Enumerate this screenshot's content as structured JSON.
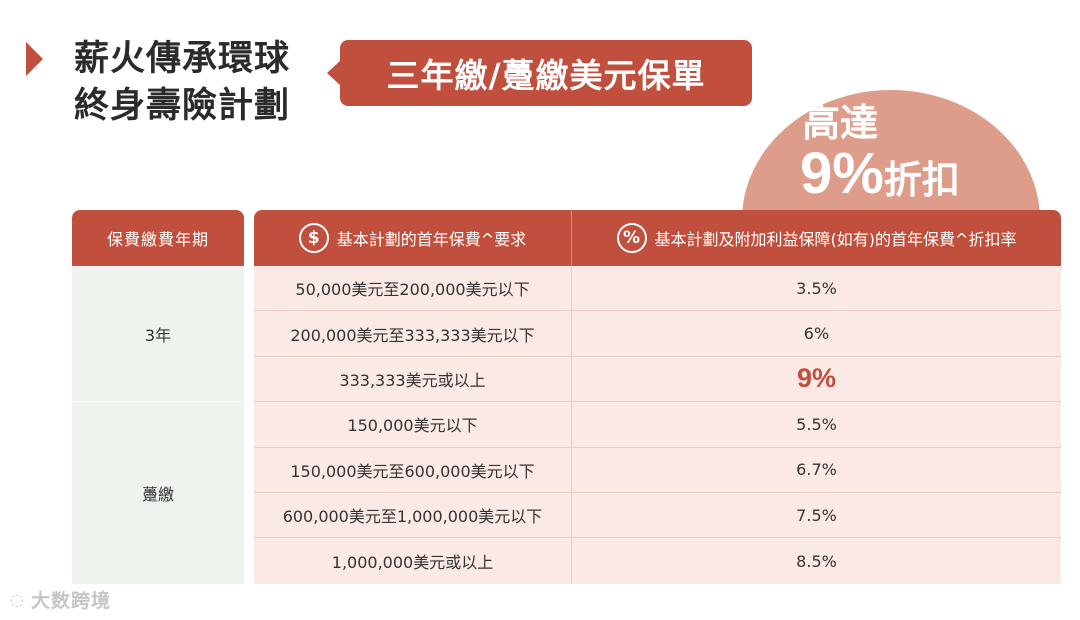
{
  "title": {
    "line1": "薪火傳承環球",
    "line2": "終身壽險計劃"
  },
  "badge": "三年繳/躉繳美元保單",
  "discount": {
    "line1": "高達",
    "value": "9%",
    "label": "折扣"
  },
  "table": {
    "col_period": "保費繳費年期",
    "col_requirement": "基本計劃的首年保費^要求",
    "col_rate": "基本計劃及附加利益保障(如有)的首年保費^折扣率",
    "icon_dollar": "$",
    "icon_percent": "%",
    "groups": [
      {
        "period": "3年"
      },
      {
        "period": "躉繳"
      }
    ],
    "rows": [
      {
        "req": "50,000美元至200,000美元以下",
        "rate": "3.5%"
      },
      {
        "req": "200,000美元至333,333美元以下",
        "rate": "6%"
      },
      {
        "req": "333,333美元或以上",
        "rate": "9%"
      },
      {
        "req": "150,000美元以下",
        "rate": "5.5%"
      },
      {
        "req": "150,000美元至600,000美元以下",
        "rate": "6.7%"
      },
      {
        "req": "600,000美元至1,000,000美元以下",
        "rate": "7.5%"
      },
      {
        "req": "1,000,000美元或以上",
        "rate": "8.5%"
      }
    ]
  },
  "watermark": "大数跨境",
  "colors": {
    "accent": "#c0503d",
    "circle": "#dd9d8a",
    "row_bg": "#fbe9e5",
    "group_bg": "#eef3ee"
  }
}
